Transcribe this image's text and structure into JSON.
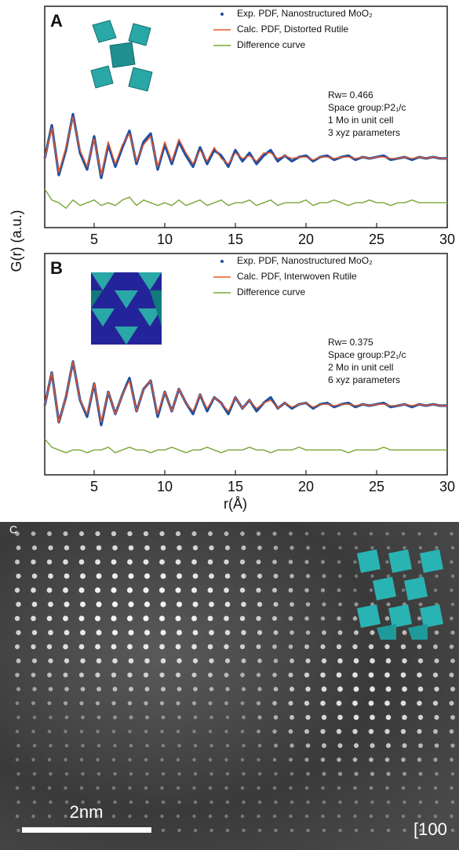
{
  "chart_data": [
    {
      "type": "line",
      "panel_label": "A",
      "ylabel": "G(r) (a.u.)",
      "x": [
        1.5,
        2,
        2.5,
        3,
        3.5,
        4,
        4.5,
        5,
        5.5,
        6,
        6.5,
        7,
        7.5,
        8,
        8.5,
        9,
        9.5,
        10,
        10.5,
        11,
        11.5,
        12,
        12.5,
        13,
        13.5,
        14,
        14.5,
        15,
        15.5,
        16,
        16.5,
        17,
        17.5,
        18,
        18.5,
        19,
        19.5,
        20,
        20.5,
        21,
        21.5,
        22,
        22.5,
        23,
        23.5,
        24,
        24.5,
        25,
        25.5,
        26,
        26.5,
        27,
        27.5,
        28,
        28.5,
        29,
        29.5,
        30
      ],
      "series": [
        {
          "name": "Exp. PDF, Nanostructured MoO₂",
          "color": "#1f4fa0",
          "values": [
            0,
            1.2,
            -0.6,
            0.3,
            1.6,
            0.2,
            -0.4,
            0.8,
            -0.7,
            0.5,
            -0.3,
            0.4,
            1.0,
            -0.2,
            0.6,
            0.9,
            -0.4,
            0.5,
            -0.2,
            0.6,
            0.1,
            -0.3,
            0.4,
            -0.2,
            0.3,
            0.1,
            -0.3,
            0.3,
            -0.1,
            0.2,
            -0.2,
            0.1,
            0.3,
            -0.1,
            0.1,
            -0.1,
            0.05,
            0.1,
            -0.1,
            0.05,
            0.1,
            -0.05,
            0.05,
            0.1,
            -0.05,
            0.05,
            0,
            0.05,
            0.1,
            -0.05,
            0,
            0.05,
            -0.05,
            0.05,
            0,
            0.05,
            0,
            0
          ]
        },
        {
          "name": "Calc. PDF, Distorted Rutile",
          "color": "#e8582a",
          "values": [
            0,
            1.1,
            -0.5,
            0.4,
            1.5,
            0.3,
            -0.3,
            0.7,
            -0.6,
            0.6,
            -0.2,
            0.5,
            0.9,
            -0.1,
            0.5,
            0.8,
            -0.3,
            0.6,
            -0.1,
            0.7,
            0.2,
            -0.2,
            0.3,
            -0.1,
            0.4,
            0,
            -0.2,
            0.2,
            0,
            0.1,
            -0.1,
            0.2,
            0.2,
            0,
            0.1,
            0,
            0.05,
            0.05,
            -0.05,
            0.05,
            0.05,
            0,
            0.05,
            0.05,
            0,
            0.05,
            0,
            0.05,
            0.05,
            0,
            0,
            0.05,
            0,
            0.05,
            0,
            0.05,
            0,
            0
          ]
        },
        {
          "name": "Difference curve",
          "color": "#7aa83a",
          "values": [
            -1.1,
            -1.5,
            -1.6,
            -1.8,
            -1.5,
            -1.7,
            -1.6,
            -1.5,
            -1.7,
            -1.6,
            -1.7,
            -1.5,
            -1.4,
            -1.7,
            -1.5,
            -1.6,
            -1.7,
            -1.6,
            -1.7,
            -1.5,
            -1.7,
            -1.6,
            -1.5,
            -1.7,
            -1.6,
            -1.5,
            -1.7,
            -1.6,
            -1.6,
            -1.5,
            -1.7,
            -1.6,
            -1.5,
            -1.7,
            -1.6,
            -1.6,
            -1.6,
            -1.5,
            -1.7,
            -1.6,
            -1.6,
            -1.5,
            -1.6,
            -1.7,
            -1.6,
            -1.6,
            -1.5,
            -1.6,
            -1.6,
            -1.7,
            -1.6,
            -1.6,
            -1.5,
            -1.6,
            -1.6,
            -1.6,
            -1.6,
            -1.6
          ]
        }
      ],
      "annotations": [
        "Rw= 0.466",
        "Space group:P2₁/c",
        "1 Mo in unit cell",
        "3 xyz parameters"
      ],
      "xlim": [
        1.5,
        30
      ],
      "xticks": [
        5,
        10,
        15,
        20,
        25,
        30
      ],
      "ylim": [
        -2.5,
        5.5
      ]
    },
    {
      "type": "line",
      "panel_label": "B",
      "xlabel": "r(Å)",
      "x": [
        1.5,
        2,
        2.5,
        3,
        3.5,
        4,
        4.5,
        5,
        5.5,
        6,
        6.5,
        7,
        7.5,
        8,
        8.5,
        9,
        9.5,
        10,
        10.5,
        11,
        11.5,
        12,
        12.5,
        13,
        13.5,
        14,
        14.5,
        15,
        15.5,
        16,
        16.5,
        17,
        17.5,
        18,
        18.5,
        19,
        19.5,
        20,
        20.5,
        21,
        21.5,
        22,
        22.5,
        23,
        23.5,
        24,
        24.5,
        25,
        25.5,
        26,
        26.5,
        27,
        27.5,
        28,
        28.5,
        29,
        29.5,
        30
      ],
      "series": [
        {
          "name": "Exp. PDF, Nanostructured MoO₂",
          "color": "#1f4fa0",
          "values": [
            0,
            1.2,
            -0.6,
            0.3,
            1.6,
            0.2,
            -0.4,
            0.8,
            -0.7,
            0.5,
            -0.3,
            0.4,
            1.0,
            -0.2,
            0.6,
            0.9,
            -0.4,
            0.5,
            -0.2,
            0.6,
            0.1,
            -0.3,
            0.4,
            -0.2,
            0.3,
            0.1,
            -0.3,
            0.3,
            -0.1,
            0.2,
            -0.2,
            0.1,
            0.3,
            -0.1,
            0.1,
            -0.1,
            0.05,
            0.1,
            -0.1,
            0.05,
            0.1,
            -0.05,
            0.05,
            0.1,
            -0.05,
            0.05,
            0,
            0.05,
            0.1,
            -0.05,
            0,
            0.05,
            -0.05,
            0.05,
            0,
            0.05,
            0,
            0
          ]
        },
        {
          "name": "Calc. PDF, Interwoven Rutile",
          "color": "#e8582a",
          "values": [
            0,
            1.2,
            -0.6,
            0.3,
            1.6,
            0.2,
            -0.3,
            0.8,
            -0.6,
            0.5,
            -0.3,
            0.4,
            0.9,
            -0.2,
            0.6,
            0.9,
            -0.3,
            0.5,
            -0.2,
            0.6,
            0.1,
            -0.2,
            0.4,
            -0.1,
            0.3,
            0.1,
            -0.2,
            0.3,
            -0.1,
            0.2,
            -0.1,
            0.1,
            0.2,
            -0.1,
            0.1,
            -0.05,
            0.05,
            0.1,
            -0.05,
            0.05,
            0.05,
            0,
            0.05,
            0.05,
            0,
            0.05,
            0,
            0.05,
            0.05,
            0,
            0,
            0.05,
            0,
            0.05,
            0,
            0.05,
            0,
            0
          ]
        },
        {
          "name": "Difference curve",
          "color": "#7aa83a",
          "values": [
            -1.2,
            -1.5,
            -1.6,
            -1.7,
            -1.6,
            -1.6,
            -1.7,
            -1.6,
            -1.6,
            -1.5,
            -1.7,
            -1.6,
            -1.5,
            -1.6,
            -1.6,
            -1.7,
            -1.6,
            -1.6,
            -1.5,
            -1.6,
            -1.7,
            -1.6,
            -1.6,
            -1.5,
            -1.6,
            -1.7,
            -1.6,
            -1.6,
            -1.6,
            -1.5,
            -1.6,
            -1.6,
            -1.7,
            -1.6,
            -1.6,
            -1.6,
            -1.5,
            -1.6,
            -1.6,
            -1.6,
            -1.6,
            -1.6,
            -1.6,
            -1.7,
            -1.6,
            -1.6,
            -1.6,
            -1.6,
            -1.5,
            -1.6,
            -1.6,
            -1.6,
            -1.6,
            -1.6,
            -1.6,
            -1.6,
            -1.6,
            -1.6
          ]
        }
      ],
      "annotations": [
        "Rw= 0.375",
        "Space group:P2₁/c",
        "2 Mo in unit cell",
        "6 xyz parameters"
      ],
      "xlim": [
        1.5,
        30
      ],
      "xticks": [
        5,
        10,
        15,
        20,
        25,
        30
      ],
      "ylim": [
        -2.5,
        5.5
      ]
    }
  ],
  "image_panel": {
    "label": "C",
    "scale_bar": "2nm",
    "zone_axis": "[100"
  }
}
